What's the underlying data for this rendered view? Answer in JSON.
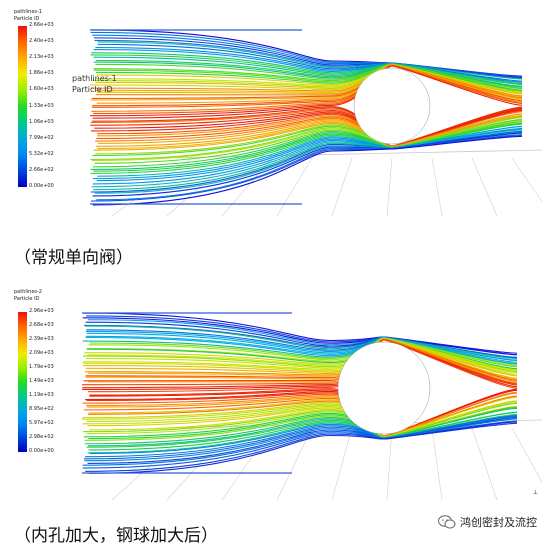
{
  "panels": [
    {
      "legend": {
        "title_line1": "pathlines-1",
        "title_line2": "Particle ID",
        "ticks": [
          "2.66e+03",
          "2.40e+03",
          "2.13e+03",
          "1.86e+03",
          "1.60e+03",
          "1.33e+03",
          "1.06e+03",
          "7.99e+02",
          "5.32e+02",
          "2.66e+02",
          "0.00e+00"
        ]
      },
      "overlay": {
        "line1": "pathlines-1",
        "line2": "Particle ID"
      },
      "caption": "（常规单向阀）"
    },
    {
      "legend": {
        "title_line1": "pathlines-2",
        "title_line2": "Particle ID",
        "ticks": [
          "2.96e+03",
          "2.68e+03",
          "2.39e+03",
          "2.09e+03",
          "1.79e+03",
          "1.49e+03",
          "1.19e+03",
          "8.95e+02",
          "5.97e+02",
          "2.98e+02",
          "0.00e+00"
        ]
      },
      "caption": "（内孔加大，钢球加大后）"
    }
  ],
  "watermark": {
    "text": "鸿创密封及流控",
    "icon": "wechat-bubble-icon"
  },
  "colors": {
    "high": "#e8200e",
    "mid": "#30d020",
    "low": "#1020d0"
  }
}
